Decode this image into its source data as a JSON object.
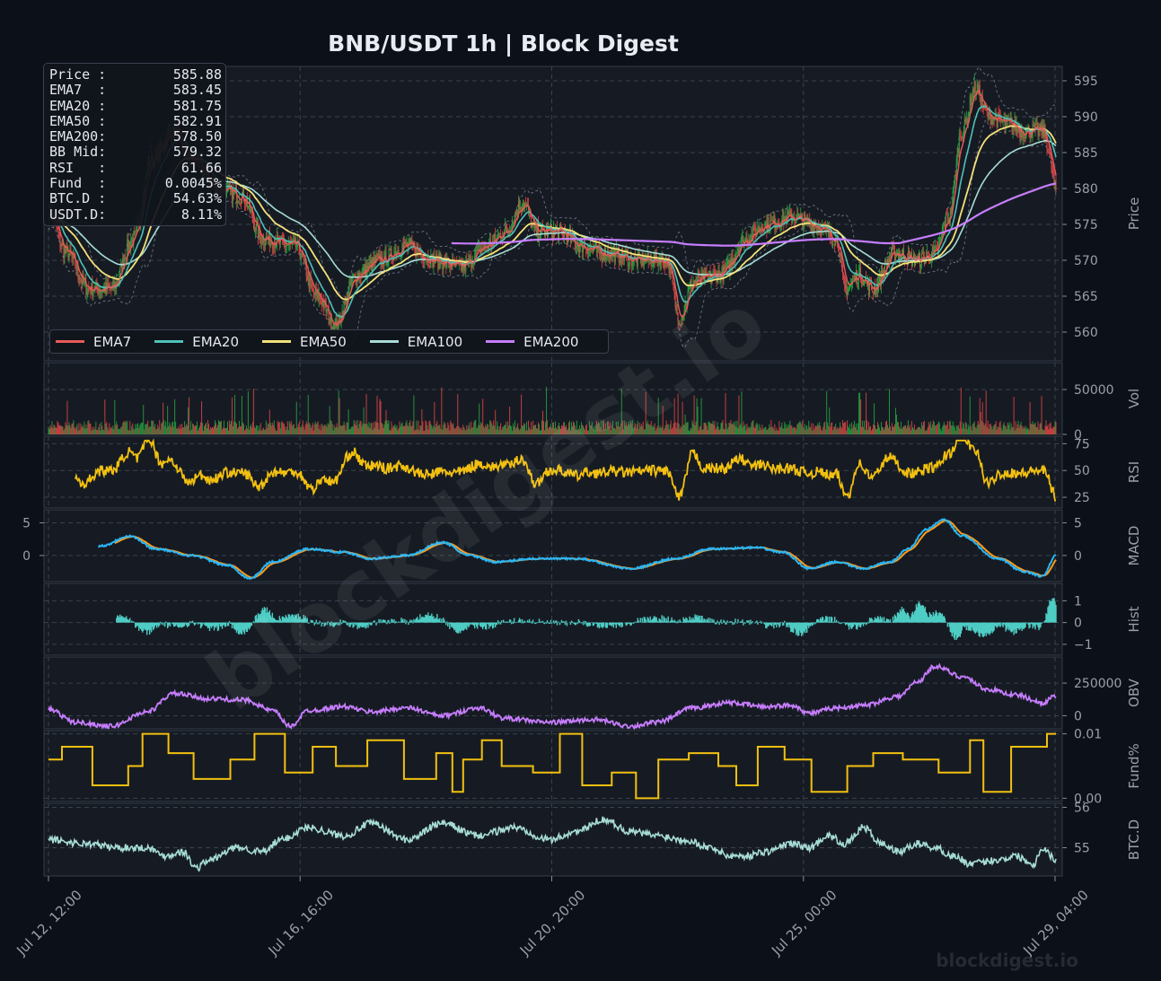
{
  "title": "BNB/USDT  1h  |  Block Digest",
  "watermark": "blockdigest.io",
  "footer_watermark": "blockdigest.io",
  "info_box": [
    {
      "label": "Price :",
      "value": "585.88"
    },
    {
      "label": "EMA7  :",
      "value": "583.45"
    },
    {
      "label": "EMA20 :",
      "value": "581.75"
    },
    {
      "label": "EMA50 :",
      "value": "582.91"
    },
    {
      "label": "EMA200:",
      "value": "578.50"
    },
    {
      "label": "BB Mid:",
      "value": "579.32"
    },
    {
      "label": "RSI   :",
      "value": "61.66"
    },
    {
      "label": "Fund  :",
      "value": "0.0045%"
    },
    {
      "label": "BTC.D :",
      "value": "54.63%"
    },
    {
      "label": "USDT.D:",
      "value": "8.11%"
    }
  ],
  "legend": [
    {
      "name": "EMA7",
      "color": "#e85a5a"
    },
    {
      "name": "EMA20",
      "color": "#4fc1b8"
    },
    {
      "name": "EMA50",
      "color": "#f4e27a"
    },
    {
      "name": "EMA100",
      "color": "#a7dcd6"
    },
    {
      "name": "EMA200",
      "color": "#c77dff"
    }
  ],
  "colors": {
    "up": "#26a641",
    "down": "#e04545",
    "rsi": "#f2c010",
    "macd": "#29b6f6",
    "signal": "#ff9b1a",
    "hist": "#4ecdc4",
    "obv": "#c77dff",
    "fund": "#f2c010",
    "btcd": "#a7dcd6"
  },
  "chart_data": {
    "type": "line",
    "x_ticks": [
      "Jul 12, 12:00",
      "Jul 16, 16:00",
      "Jul 20, 20:00",
      "Jul 25, 00:00",
      "Jul 29, 04:00"
    ],
    "panels": [
      {
        "id": "price",
        "ylabel": "Price",
        "ylim": [
          556,
          597
        ],
        "ticks": [
          560,
          565,
          570,
          575,
          580,
          585,
          590,
          595
        ],
        "series": [
          "EMA7",
          "EMA20",
          "EMA50",
          "EMA100",
          "EMA200",
          "Bollinger Bands",
          "Candles"
        ],
        "anchors": [
          [
            0,
            577
          ],
          [
            20,
            571
          ],
          [
            45,
            566
          ],
          [
            70,
            566
          ],
          [
            95,
            573
          ],
          [
            115,
            584
          ],
          [
            140,
            588
          ],
          [
            160,
            584
          ],
          [
            190,
            580
          ],
          [
            215,
            579
          ],
          [
            240,
            573
          ],
          [
            275,
            572
          ],
          [
            300,
            565
          ],
          [
            320,
            561
          ],
          [
            345,
            568
          ],
          [
            370,
            570
          ],
          [
            400,
            572
          ],
          [
            430,
            570
          ],
          [
            460,
            569
          ],
          [
            490,
            572
          ],
          [
            510,
            574
          ],
          [
            530,
            578
          ],
          [
            545,
            574
          ],
          [
            570,
            574
          ],
          [
            595,
            572
          ],
          [
            620,
            571
          ],
          [
            660,
            570
          ],
          [
            690,
            570
          ],
          [
            705,
            562
          ],
          [
            720,
            567
          ],
          [
            750,
            568
          ],
          [
            780,
            573
          ],
          [
            800,
            575
          ],
          [
            830,
            576
          ],
          [
            855,
            575
          ],
          [
            880,
            573
          ],
          [
            890,
            566
          ],
          [
            905,
            568
          ],
          [
            920,
            566
          ],
          [
            945,
            571
          ],
          [
            970,
            570
          ],
          [
            990,
            571
          ],
          [
            1005,
            576
          ],
          [
            1020,
            588
          ],
          [
            1035,
            594
          ],
          [
            1050,
            590
          ],
          [
            1070,
            589
          ],
          [
            1090,
            588
          ],
          [
            1110,
            588
          ],
          [
            1130,
            578
          ],
          [
            1150,
            575
          ],
          [
            1160,
            577
          ],
          [
            1175,
            586
          ]
        ]
      },
      {
        "id": "volume",
        "ylabel": "Vol",
        "ylim": [
          0,
          80000
        ],
        "ticks": [
          0,
          50000
        ]
      },
      {
        "id": "rsi",
        "ylabel": "RSI",
        "ylim": [
          15,
          82
        ],
        "ticks": [
          25,
          50,
          75
        ]
      },
      {
        "id": "macd",
        "ylabel": "MACD",
        "ylim": [
          -4,
          7
        ],
        "ticks": [
          0,
          5
        ],
        "left_ticks": [
          0,
          5
        ],
        "anchors": [
          [
            0,
            -2.8
          ],
          [
            30,
            -2.2
          ],
          [
            60,
            1.5
          ],
          [
            90,
            3
          ],
          [
            120,
            1
          ],
          [
            160,
            0
          ],
          [
            200,
            -1.5
          ],
          [
            225,
            -3.5
          ],
          [
            250,
            -1
          ],
          [
            290,
            1
          ],
          [
            330,
            0.5
          ],
          [
            360,
            -0.5
          ],
          [
            400,
            0
          ],
          [
            440,
            2
          ],
          [
            470,
            0
          ],
          [
            500,
            -1
          ],
          [
            540,
            -0.5
          ],
          [
            590,
            -0.5
          ],
          [
            650,
            -2
          ],
          [
            700,
            -0.5
          ],
          [
            740,
            1
          ],
          [
            790,
            1.2
          ],
          [
            820,
            0.5
          ],
          [
            850,
            -2
          ],
          [
            880,
            -1
          ],
          [
            910,
            -2
          ],
          [
            940,
            -1
          ],
          [
            960,
            1
          ],
          [
            980,
            4
          ],
          [
            1000,
            5.5
          ],
          [
            1020,
            3
          ],
          [
            1060,
            -0.5
          ],
          [
            1090,
            -2.5
          ],
          [
            1110,
            -3.2
          ],
          [
            1125,
            0
          ]
        ]
      },
      {
        "id": "hist",
        "ylabel": "Hist",
        "ylim": [
          -1.5,
          1.8
        ],
        "ticks": [
          -1,
          0,
          1
        ]
      },
      {
        "id": "obv",
        "ylabel": "OBV",
        "ylim": [
          -100000,
          450000
        ],
        "ticks": [
          0,
          250000
        ],
        "anchors": [
          [
            0,
            50000
          ],
          [
            30,
            -50000
          ],
          [
            70,
            -80000
          ],
          [
            110,
            30000
          ],
          [
            140,
            170000
          ],
          [
            180,
            130000
          ],
          [
            220,
            120000
          ],
          [
            250,
            40000
          ],
          [
            270,
            -80000
          ],
          [
            290,
            40000
          ],
          [
            330,
            70000
          ],
          [
            360,
            30000
          ],
          [
            400,
            60000
          ],
          [
            440,
            0
          ],
          [
            480,
            60000
          ],
          [
            510,
            -20000
          ],
          [
            560,
            -50000
          ],
          [
            610,
            -30000
          ],
          [
            650,
            -80000
          ],
          [
            680,
            -50000
          ],
          [
            720,
            60000
          ],
          [
            760,
            100000
          ],
          [
            800,
            70000
          ],
          [
            830,
            80000
          ],
          [
            850,
            20000
          ],
          [
            880,
            60000
          ],
          [
            910,
            80000
          ],
          [
            950,
            150000
          ],
          [
            970,
            260000
          ],
          [
            990,
            380000
          ],
          [
            1020,
            300000
          ],
          [
            1050,
            200000
          ],
          [
            1080,
            160000
          ],
          [
            1110,
            100000
          ],
          [
            1125,
            150000
          ]
        ]
      },
      {
        "id": "fund",
        "ylabel": "Fund%",
        "ylim": [
          -0.0005,
          0.0105
        ],
        "ticks": [
          "0.00",
          "0.01"
        ]
      },
      {
        "id": "btcd",
        "ylabel": "BTC.D",
        "ylim": [
          54.3,
          56.1
        ],
        "ticks": [
          55,
          56
        ],
        "anchors": [
          [
            0,
            55.2
          ],
          [
            40,
            55.1
          ],
          [
            80,
            55.0
          ],
          [
            110,
            55.0
          ],
          [
            130,
            54.8
          ],
          [
            150,
            54.9
          ],
          [
            165,
            54.5
          ],
          [
            180,
            54.7
          ],
          [
            210,
            55.0
          ],
          [
            240,
            54.9
          ],
          [
            260,
            55.2
          ],
          [
            290,
            55.5
          ],
          [
            330,
            55.3
          ],
          [
            360,
            55.6
          ],
          [
            400,
            55.2
          ],
          [
            440,
            55.6
          ],
          [
            480,
            55.3
          ],
          [
            520,
            55.5
          ],
          [
            560,
            55.2
          ],
          [
            590,
            55.4
          ],
          [
            620,
            55.7
          ],
          [
            650,
            55.4
          ],
          [
            680,
            55.3
          ],
          [
            710,
            55.2
          ],
          [
            740,
            55.0
          ],
          [
            760,
            54.8
          ],
          [
            780,
            54.8
          ],
          [
            800,
            54.9
          ],
          [
            830,
            55.1
          ],
          [
            850,
            55.0
          ],
          [
            870,
            55.3
          ],
          [
            890,
            55.1
          ],
          [
            910,
            55.5
          ],
          [
            930,
            55.1
          ],
          [
            950,
            54.9
          ],
          [
            970,
            55.1
          ],
          [
            990,
            55.0
          ],
          [
            1010,
            54.8
          ],
          [
            1030,
            54.6
          ],
          [
            1060,
            54.7
          ],
          [
            1080,
            54.8
          ],
          [
            1100,
            54.6
          ],
          [
            1110,
            55.0
          ],
          [
            1125,
            54.7
          ]
        ]
      }
    ]
  }
}
